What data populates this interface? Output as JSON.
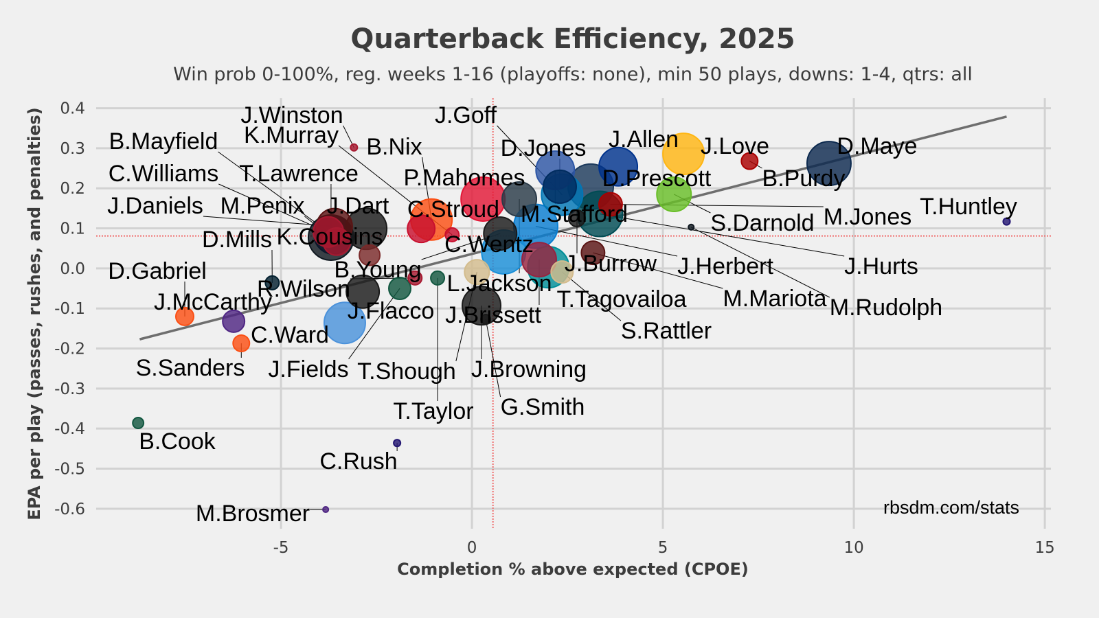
{
  "chart_data": {
    "type": "scatter",
    "title": "Quarterback Efficiency, 2025",
    "subtitle": "Win prob 0-100%, reg. weeks 1-16 (playoffs: none), min 50 plays, downs: 1-4, qtrs: all",
    "xlabel": "Completion % above expected (CPOE)",
    "ylabel": "EPA per play (passes, rushes, and penalties)",
    "credit": "rbsdm.com/stats",
    "xlim": [
      -9.84,
      15.16
    ],
    "ylim": [
      -0.65,
      0.425
    ],
    "xticks": [
      -5,
      0,
      5,
      10,
      15
    ],
    "xtick_labels": [
      "-5",
      "0",
      "5",
      "10",
      "15"
    ],
    "yticks": [
      0.4,
      0.3,
      0.2,
      0.1,
      0.0,
      -0.1,
      -0.2,
      -0.3,
      -0.4,
      -0.5,
      -0.6
    ],
    "ytick_labels": [
      "0.4",
      "0.3",
      "0.2",
      "0.1",
      "0.0",
      "-0.1",
      "-0.2",
      "-0.3",
      "-0.4",
      "-0.5",
      "-0.6"
    ],
    "grid": true,
    "mean_x": 0.55,
    "mean_y": 0.081,
    "fit_line": {
      "x": [
        -8.7,
        14.0
      ],
      "y": [
        -0.177,
        0.379
      ]
    },
    "points": [
      {
        "name": "T.Lawrence",
        "x": -3.69,
        "y": 0.077,
        "plays": 600,
        "color": "#101820"
      },
      {
        "name": "D.Prescott",
        "x": 3.11,
        "y": 0.204,
        "plays": 600,
        "color": "#1d3a5c"
      },
      {
        "name": "J.Hurts",
        "x": 3.35,
        "y": 0.136,
        "plays": 600,
        "color": "#004c54"
      },
      {
        "name": "D.Maye",
        "x": 9.35,
        "y": 0.262,
        "plays": 564,
        "color": "#0d2a4f"
      },
      {
        "name": "J.Herbert",
        "x": 1.67,
        "y": 0.105,
        "plays": 564,
        "color": "#0a7ed1"
      },
      {
        "name": "C.Wentz",
        "x": 0.83,
        "y": 0.041,
        "plays": 564,
        "color": "#1a8fd8"
      },
      {
        "name": "P.Mahomes",
        "x": 0.29,
        "y": 0.173,
        "plays": 564,
        "color": "#e31837"
      },
      {
        "name": "C.Williams",
        "x": -3.63,
        "y": 0.084,
        "plays": 432,
        "color": "#0b162a"
      },
      {
        "name": "J.Love",
        "x": 5.54,
        "y": 0.286,
        "plays": 496,
        "color": "#ffb612"
      },
      {
        "name": "J.Goff",
        "x": 2.36,
        "y": 0.184,
        "plays": 496,
        "color": "#0076b6"
      },
      {
        "name": "T.Tagovailoa",
        "x": 2.0,
        "y": 0.003,
        "plays": 496,
        "color": "#008e97"
      },
      {
        "name": "B.Nix",
        "x": -1.06,
        "y": 0.122,
        "plays": 496,
        "color": "#fb4f14"
      },
      {
        "name": "J.Dart",
        "x": -2.77,
        "y": 0.099,
        "plays": 496,
        "color": "#1a1a1a"
      },
      {
        "name": "C.Ward",
        "x": -3.33,
        "y": -0.136,
        "plays": 496,
        "color": "#4b92db"
      },
      {
        "name": "J.Allen",
        "x": 3.83,
        "y": 0.254,
        "plays": 432,
        "color": "#00338d"
      },
      {
        "name": "M.Stafford",
        "x": 2.18,
        "y": 0.245,
        "plays": 432,
        "color": "#2d56a5"
      },
      {
        "name": "J.Browning",
        "x": 0.25,
        "y": -0.093,
        "plays": 432,
        "color": "#1a1a1a"
      },
      {
        "name": "J.Daniels",
        "x": -3.6,
        "y": 0.105,
        "plays": 372,
        "color": "#5a1414"
      },
      {
        "name": "S.Darnold",
        "x": 5.29,
        "y": 0.185,
        "plays": 344,
        "color": "#69be28"
      },
      {
        "name": "L.Jackson",
        "x": 1.24,
        "y": 0.173,
        "plays": 344,
        "color": "#2a3a48"
      },
      {
        "name": "J.Brissett",
        "x": 1.76,
        "y": 0.022,
        "plays": 344,
        "color": "#97233f"
      },
      {
        "name": "D.Jones",
        "x": 2.3,
        "y": 0.204,
        "plays": 317,
        "color": "#002c5f"
      },
      {
        "name": "B.Young",
        "x": 0.74,
        "y": 0.087,
        "plays": 317,
        "color": "#1a1a1a"
      },
      {
        "name": "J.Flacco",
        "x": -2.86,
        "y": -0.058,
        "plays": 317,
        "color": "#1a1a1a"
      },
      {
        "name": "B.Mayfield",
        "x": -3.76,
        "y": 0.091,
        "plays": 267,
        "color": "#a71930"
      },
      {
        "name": "C.Stroud",
        "x": -1.33,
        "y": 0.099,
        "plays": 220,
        "color": "#c8102e"
      },
      {
        "name": "M.Penix",
        "x": -3.54,
        "y": 0.067,
        "plays": 220,
        "color": "#a71930"
      },
      {
        "name": "T.Shough",
        "x": 0.13,
        "y": -0.009,
        "plays": 179,
        "color": "#d3bc8d"
      },
      {
        "name": "M.Jones",
        "x": 3.63,
        "y": 0.16,
        "plays": 159,
        "color": "#aa0000"
      },
      {
        "name": "M.Mariota",
        "x": 3.17,
        "y": 0.039,
        "plays": 159,
        "color": "#5a1414"
      },
      {
        "name": "S.Rattler",
        "x": 2.36,
        "y": -0.009,
        "plays": 141,
        "color": "#d3bc8d"
      },
      {
        "name": "J.Fields",
        "x": -1.89,
        "y": -0.05,
        "plays": 141,
        "color": "#125740"
      },
      {
        "name": "J.McCarthy",
        "x": -6.24,
        "y": -0.132,
        "plays": 141,
        "color": "#4f2683"
      },
      {
        "name": "K.Cousins",
        "x": -2.68,
        "y": 0.033,
        "plays": 124,
        "color": "#7a2a2a"
      },
      {
        "name": "D.Gabriel",
        "x": -7.52,
        "y": -0.12,
        "plays": 93,
        "color": "#fb4f14"
      },
      {
        "name": "B.Purdy",
        "x": 7.27,
        "y": 0.268,
        "plays": 79,
        "color": "#aa0000"
      },
      {
        "name": "J.Burrow",
        "x": 2.75,
        "y": 0.125,
        "plays": 79,
        "color": "#1a1a1a"
      },
      {
        "name": "S.Sanders",
        "x": -6.04,
        "y": -0.187,
        "plays": 79,
        "color": "#fb4f14"
      },
      {
        "name": "K.Murray",
        "x": -0.52,
        "y": 0.084,
        "plays": 55,
        "color": "#c8102e"
      },
      {
        "name": "R.Wilson",
        "x": -1.49,
        "y": -0.024,
        "plays": 55,
        "color": "#a71930"
      },
      {
        "name": "T.Taylor",
        "x": -0.9,
        "y": -0.024,
        "plays": 55,
        "color": "#125740"
      },
      {
        "name": "D.Mills",
        "x": -5.23,
        "y": -0.036,
        "plays": 55,
        "color": "#03202f"
      },
      {
        "name": "B.Cook",
        "x": -8.74,
        "y": -0.386,
        "plays": 35,
        "color": "#125740"
      },
      {
        "name": "G.Smith",
        "x": 0.36,
        "y": -0.127,
        "plays": 27,
        "color": "#1a1a1a"
      },
      {
        "name": "T.Huntley",
        "x": 14.0,
        "y": 0.117,
        "plays": 14,
        "color": "#241773"
      },
      {
        "name": "C.Rush",
        "x": -1.96,
        "y": -0.436,
        "plays": 14,
        "color": "#241773"
      },
      {
        "name": "J.Winston",
        "x": -3.09,
        "y": 0.302,
        "plays": 14,
        "color": "#a71930"
      },
      {
        "name": "M.Rudolph",
        "x": 5.74,
        "y": 0.103,
        "plays": 9,
        "color": "#101820"
      },
      {
        "name": "M.Brosmer",
        "x": -3.83,
        "y": -0.602,
        "plays": 9,
        "color": "#4f2683"
      }
    ]
  }
}
